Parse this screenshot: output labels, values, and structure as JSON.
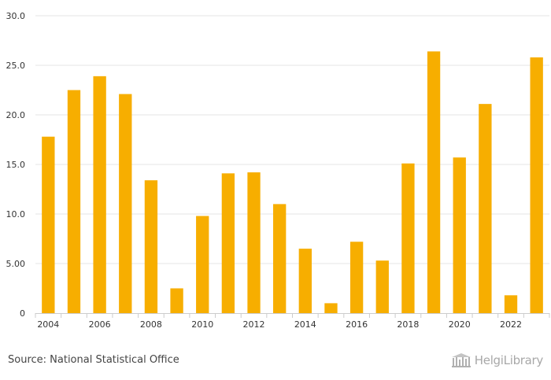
{
  "chart_data": {
    "type": "bar",
    "title": "",
    "xlabel": "",
    "ylabel": "",
    "categories": [
      "2004",
      "2005",
      "2006",
      "2007",
      "2008",
      "2009",
      "2010",
      "2011",
      "2012",
      "2013",
      "2014",
      "2015",
      "2016",
      "2017",
      "2018",
      "2019",
      "2020",
      "2021",
      "2022",
      "2023"
    ],
    "x_tick_labels": [
      "2004",
      "2006",
      "2008",
      "2010",
      "2012",
      "2014",
      "2016",
      "2018",
      "2020",
      "2022"
    ],
    "values": [
      17.8,
      22.5,
      23.9,
      22.1,
      13.4,
      2.5,
      9.8,
      14.1,
      14.2,
      11.0,
      6.5,
      1.0,
      7.2,
      5.3,
      15.1,
      26.4,
      15.7,
      21.1,
      1.8,
      25.8
    ],
    "ylim": [
      0,
      30
    ],
    "y_ticks": [
      0,
      5,
      10,
      15,
      20,
      25,
      30
    ],
    "y_tick_labels": [
      "0",
      "5.00",
      "10.0",
      "15.0",
      "20.0",
      "25.0",
      "30.0"
    ],
    "bar_color": "#f7ae00",
    "grid": true
  },
  "footer": {
    "source": "Source: National Statistical Office",
    "brand": "HelgiLibrary"
  },
  "colors": {
    "grid": "#e6e6e6",
    "axis": "#cccccc",
    "tick_text": "#333333"
  }
}
